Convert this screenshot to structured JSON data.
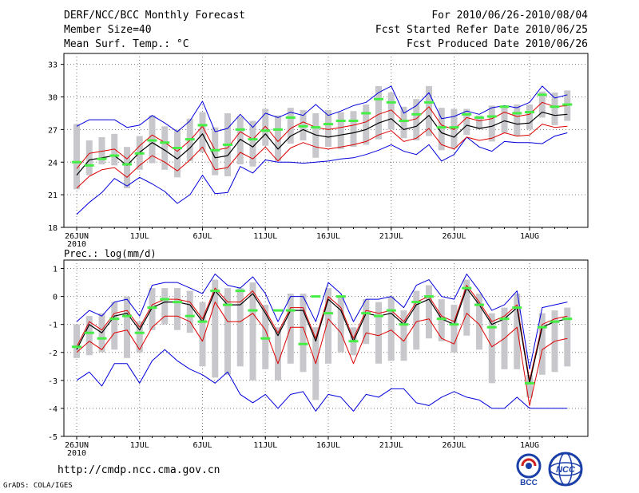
{
  "header": {
    "title": "DERF/NCC/BCC Monthly Forecast",
    "member_size": "Member Size=40",
    "variable": "Mean Surf. Temp.: °C",
    "period": "For 2010/06/26-2010/08/04",
    "start_date": "Fcst Started Refer Date 2010/06/25",
    "produced_date": "Fcst Produced Date 2010/06/26"
  },
  "footer": {
    "url": "http://cmdp.ncc.cma.gov.cn",
    "grads": "GrADS: COLA/IGES",
    "logo_bcc": "BCC",
    "logo_ncc": "NCC"
  },
  "colors": {
    "mean": "#000000",
    "spread": "#dd0000",
    "extremes": "#0000dd",
    "box": "#c8c8cc",
    "median": "#44ee44",
    "grid": "#777777"
  },
  "chart_data": [
    {
      "type": "line",
      "title": "",
      "ylabel": "Mean Surf. Temp.: °C",
      "ylim": [
        18,
        34
      ],
      "yticks": [
        18,
        21,
        24,
        27,
        30,
        33
      ],
      "x_tick_labels": [
        {
          "day": 0,
          "label": "26JUN",
          "sub": "2010"
        },
        {
          "day": 5,
          "label": "1JUL"
        },
        {
          "day": 10,
          "label": "6JUL"
        },
        {
          "day": 15,
          "label": "11JUL"
        },
        {
          "day": 20,
          "label": "16JUL"
        },
        {
          "day": 25,
          "label": "21JUL"
        },
        {
          "day": 30,
          "label": "26JUL"
        },
        {
          "day": 36,
          "label": "1AUG"
        }
      ],
      "x": [
        0,
        1,
        2,
        3,
        4,
        5,
        6,
        7,
        8,
        9,
        10,
        11,
        12,
        13,
        14,
        15,
        16,
        17,
        18,
        19,
        20,
        21,
        22,
        23,
        24,
        25,
        26,
        27,
        28,
        29,
        30,
        31,
        32,
        33,
        34,
        35,
        36,
        37,
        38,
        39
      ],
      "series": [
        {
          "name": "Ensemble mean",
          "role": "mean",
          "values": [
            22.8,
            24.2,
            24.4,
            24.6,
            23.7,
            24.9,
            25.8,
            25.1,
            24.3,
            25.3,
            26.6,
            24.4,
            24.6,
            26.1,
            25.4,
            26.6,
            25.2,
            26.4,
            27.0,
            26.5,
            26.3,
            26.5,
            26.7,
            27.0,
            27.6,
            28.0,
            27.0,
            27.3,
            28.3,
            26.7,
            26.3,
            27.4,
            27.1,
            27.3,
            27.8,
            27.5,
            27.6,
            28.6,
            28.3,
            28.4
          ]
        },
        {
          "name": "Mean + spread",
          "role": "spread_upper",
          "values": [
            23.4,
            24.8,
            25.0,
            25.2,
            24.3,
            25.5,
            26.5,
            25.8,
            25.0,
            26.0,
            27.3,
            25.1,
            25.3,
            26.8,
            26.1,
            27.3,
            25.9,
            27.1,
            27.7,
            27.2,
            27.0,
            27.2,
            27.4,
            27.7,
            28.4,
            28.8,
            27.7,
            28.0,
            29.1,
            27.4,
            27.0,
            28.1,
            27.8,
            28.0,
            28.6,
            28.2,
            28.4,
            29.5,
            29.1,
            29.2
          ]
        },
        {
          "name": "Mean - spread",
          "role": "spread_lower",
          "values": [
            21.6,
            22.7,
            23.3,
            23.5,
            22.6,
            23.7,
            24.6,
            24.0,
            23.2,
            24.2,
            25.4,
            23.3,
            23.5,
            24.9,
            24.3,
            25.4,
            24.1,
            25.3,
            25.8,
            25.4,
            25.2,
            25.4,
            25.6,
            25.9,
            26.5,
            26.9,
            25.9,
            26.2,
            27.1,
            25.6,
            25.2,
            26.3,
            26.0,
            26.2,
            26.7,
            26.4,
            26.5,
            27.5,
            27.2,
            27.3
          ]
        },
        {
          "name": "Ensemble max",
          "role": "max",
          "values": [
            27.3,
            27.9,
            27.9,
            27.9,
            27.2,
            27.4,
            28.3,
            27.6,
            26.8,
            27.8,
            29.6,
            26.8,
            27.1,
            28.4,
            27.2,
            28.5,
            28.1,
            28.6,
            28.3,
            29.3,
            28.3,
            28.7,
            29.2,
            29.5,
            30.4,
            31.0,
            28.5,
            29.2,
            30.4,
            28.0,
            28.2,
            28.7,
            28.4,
            29.0,
            29.2,
            29.0,
            29.5,
            31.0,
            29.9,
            30.2
          ]
        },
        {
          "name": "Ensemble min",
          "role": "min",
          "values": [
            19.2,
            20.3,
            21.2,
            22.5,
            21.8,
            22.6,
            22.0,
            21.3,
            20.2,
            21.0,
            22.8,
            21.1,
            21.2,
            23.6,
            23.0,
            24.2,
            24.0,
            24.0,
            23.9,
            24.0,
            24.1,
            24.3,
            24.4,
            24.7,
            25.1,
            25.6,
            25.0,
            24.7,
            25.6,
            24.1,
            24.7,
            26.3,
            25.4,
            25.0,
            25.9,
            25.8,
            25.8,
            25.7,
            26.4,
            26.7
          ]
        },
        {
          "name": "Box 75th pct",
          "role": "box_top",
          "values": [
            27.5,
            26.0,
            26.3,
            26.6,
            25.4,
            26.4,
            28.3,
            27.3,
            27.0,
            28.0,
            28.6,
            27.2,
            28.5,
            28.2,
            27.8,
            28.9,
            28.3,
            29.0,
            28.8,
            28.5,
            28.8,
            28.6,
            28.7,
            29.3,
            31.0,
            30.4,
            29.1,
            29.8,
            31.0,
            29.0,
            28.9,
            28.9,
            28.3,
            29.2,
            29.2,
            29.3,
            29.3,
            30.5,
            30.4,
            30.6
          ]
        },
        {
          "name": "Box 25th pct",
          "role": "box_bottom",
          "values": [
            21.5,
            22.8,
            23.8,
            23.7,
            21.6,
            23.3,
            23.9,
            23.3,
            22.6,
            24.1,
            24.9,
            22.8,
            22.7,
            23.8,
            23.6,
            25.5,
            24.1,
            25.7,
            26.0,
            24.4,
            25.4,
            25.2,
            25.4,
            25.6,
            26.1,
            27.0,
            26.2,
            26.0,
            26.4,
            25.1,
            25.3,
            26.5,
            27.0,
            25.9,
            26.7,
            26.4,
            27.0,
            28.1,
            27.4,
            27.8
          ]
        },
        {
          "name": "Median",
          "role": "median",
          "values": [
            24.0,
            23.7,
            24.3,
            24.6,
            23.8,
            24.8,
            26.0,
            25.8,
            25.3,
            26.1,
            27.4,
            25.1,
            25.6,
            27.0,
            26.1,
            26.9,
            27.0,
            28.1,
            27.3,
            27.2,
            27.5,
            27.8,
            27.8,
            28.5,
            29.8,
            29.5,
            27.8,
            28.4,
            29.5,
            27.2,
            27.2,
            28.4,
            28.1,
            28.2,
            29.1,
            28.5,
            28.6,
            30.2,
            29.1,
            29.3
          ]
        }
      ]
    },
    {
      "type": "line",
      "title": "Prec.: log(mm/d)",
      "ylabel": "Prec.: log(mm/d)",
      "ylim": [
        -5,
        1.3
      ],
      "yticks": [
        -5,
        -4,
        -3,
        -2,
        -1,
        0,
        1
      ],
      "x_tick_labels": [
        {
          "day": 0,
          "label": "26JUN",
          "sub": "2010"
        },
        {
          "day": 5,
          "label": "1JUL"
        },
        {
          "day": 10,
          "label": "6JUL"
        },
        {
          "day": 15,
          "label": "11JUL"
        },
        {
          "day": 20,
          "label": "16JUL"
        },
        {
          "day": 25,
          "label": "21JUL"
        },
        {
          "day": 30,
          "label": "26JUL"
        },
        {
          "day": 36,
          "label": "1AUG"
        }
      ],
      "x": [
        0,
        1,
        2,
        3,
        4,
        5,
        6,
        7,
        8,
        9,
        10,
        11,
        12,
        13,
        14,
        15,
        16,
        17,
        18,
        19,
        20,
        21,
        22,
        23,
        24,
        25,
        26,
        27,
        28,
        29,
        30,
        31,
        32,
        33,
        34,
        35,
        36,
        37,
        38,
        39
      ],
      "series": [
        {
          "name": "Ensemble mean",
          "role": "mean",
          "values": [
            -1.9,
            -1.0,
            -1.3,
            -0.7,
            -0.6,
            -1.2,
            -0.4,
            -0.2,
            -0.2,
            -0.3,
            -0.9,
            0.2,
            -0.3,
            -0.3,
            0.1,
            -0.6,
            -1.4,
            -0.5,
            -0.5,
            -1.6,
            -0.1,
            -0.5,
            -1.6,
            -0.6,
            -0.7,
            -0.6,
            -1.0,
            -0.3,
            -0.1,
            -0.8,
            -1.0,
            0.3,
            -0.3,
            -1.0,
            -0.8,
            -0.4,
            -3.1,
            -1.1,
            -0.9,
            -0.8
          ]
        },
        {
          "name": "Mean + spread",
          "role": "spread_upper",
          "values": [
            -1.8,
            -0.9,
            -1.2,
            -0.6,
            -0.5,
            -1.1,
            -0.3,
            -0.1,
            -0.1,
            -0.2,
            -0.8,
            0.3,
            -0.2,
            -0.2,
            0.2,
            -0.5,
            -1.3,
            -0.4,
            -0.4,
            -1.5,
            0.0,
            -0.4,
            -1.5,
            -0.5,
            -0.6,
            -0.5,
            -0.9,
            -0.2,
            0.0,
            -0.7,
            -0.9,
            0.4,
            -0.2,
            -0.9,
            -0.7,
            -0.3,
            -3.0,
            -1.0,
            -0.8,
            -0.7
          ]
        },
        {
          "name": "Mean - spread",
          "role": "spread_lower",
          "values": [
            -2.0,
            -1.6,
            -1.9,
            -1.3,
            -1.2,
            -1.9,
            -1.1,
            -0.7,
            -0.7,
            -0.9,
            -1.6,
            -0.2,
            -0.9,
            -0.9,
            -0.6,
            -1.2,
            -2.4,
            -1.1,
            -1.1,
            -2.4,
            -0.8,
            -1.3,
            -2.4,
            -1.3,
            -1.4,
            -1.2,
            -1.6,
            -0.9,
            -0.8,
            -1.5,
            -1.7,
            -0.6,
            -1.0,
            -1.8,
            -1.5,
            -1.1,
            -3.9,
            -1.9,
            -1.6,
            -1.5
          ]
        },
        {
          "name": "Ensemble max",
          "role": "max",
          "values": [
            -0.9,
            -0.5,
            -0.7,
            -0.2,
            -0.1,
            -0.7,
            0.4,
            0.5,
            0.5,
            0.3,
            0.1,
            0.8,
            0.4,
            0.3,
            0.7,
            0.1,
            -0.9,
            0.0,
            0.0,
            -0.9,
            0.5,
            0.1,
            -0.9,
            -0.1,
            -0.1,
            0.0,
            -0.4,
            0.4,
            0.6,
            0.0,
            -0.1,
            0.8,
            0.2,
            -0.5,
            -0.3,
            0.2,
            -2.6,
            -0.4,
            -0.3,
            -0.2
          ]
        },
        {
          "name": "Ensemble min",
          "role": "min",
          "values": [
            -3.0,
            -2.7,
            -3.2,
            -2.4,
            -2.4,
            -3.1,
            -2.3,
            -1.9,
            -2.3,
            -2.6,
            -2.8,
            -3.1,
            -2.7,
            -3.5,
            -3.8,
            -3.5,
            -4.0,
            -3.5,
            -3.4,
            -4.1,
            -3.5,
            -3.6,
            -4.1,
            -3.5,
            -3.6,
            -3.3,
            -3.3,
            -3.8,
            -3.9,
            -3.6,
            -3.4,
            -3.6,
            -3.7,
            -4.0,
            -4.0,
            -3.6,
            -4.0,
            -4.0,
            -4.0,
            -4.0
          ]
        },
        {
          "name": "Box 75th pct",
          "role": "box_top",
          "values": [
            -1.0,
            -0.7,
            -0.6,
            -0.2,
            0.0,
            -0.9,
            0.3,
            0.3,
            0.3,
            0.2,
            -0.2,
            0.6,
            0.3,
            0.3,
            0.5,
            -0.3,
            -1.1,
            0.1,
            0.1,
            -1.1,
            0.3,
            0.0,
            -1.1,
            -0.1,
            -0.2,
            0.0,
            -0.5,
            0.2,
            0.4,
            -0.1,
            -0.3,
            0.6,
            0.1,
            -0.6,
            -0.4,
            0.1,
            -2.8,
            -0.6,
            -0.5,
            -0.4
          ]
        },
        {
          "name": "Box 25th pct",
          "role": "box_bottom",
          "values": [
            -2.2,
            -2.1,
            -2.0,
            -1.9,
            -2.2,
            -2.0,
            -1.2,
            -1.0,
            -1.2,
            -1.3,
            -2.5,
            -2.9,
            -2.8,
            -2.5,
            -3.0,
            -2.6,
            -3.0,
            -2.4,
            -2.7,
            -3.7,
            -2.4,
            -2.0,
            -2.1,
            -1.7,
            -2.4,
            -2.3,
            -2.3,
            -1.9,
            -1.5,
            -1.6,
            -2.0,
            -1.4,
            -1.9,
            -3.1,
            -2.6,
            -2.6,
            -3.6,
            -2.8,
            -2.7,
            -2.5
          ]
        },
        {
          "name": "Median",
          "role": "median",
          "values": [
            -1.8,
            -1.3,
            -1.5,
            -0.8,
            -0.7,
            -1.3,
            -0.4,
            -0.1,
            -0.2,
            -0.7,
            -0.9,
            0.2,
            -0.3,
            0.2,
            -0.5,
            -1.5,
            -0.5,
            -0.5,
            -1.7,
            0.0,
            -0.6,
            0.0,
            -1.6,
            -0.6,
            -0.7,
            -0.5,
            -1.0,
            -0.2,
            0.0,
            -0.8,
            -1.0,
            0.3,
            -0.3,
            -1.1,
            -0.8,
            -0.4,
            -3.1,
            -1.1,
            -0.9,
            -0.8
          ]
        }
      ]
    }
  ]
}
